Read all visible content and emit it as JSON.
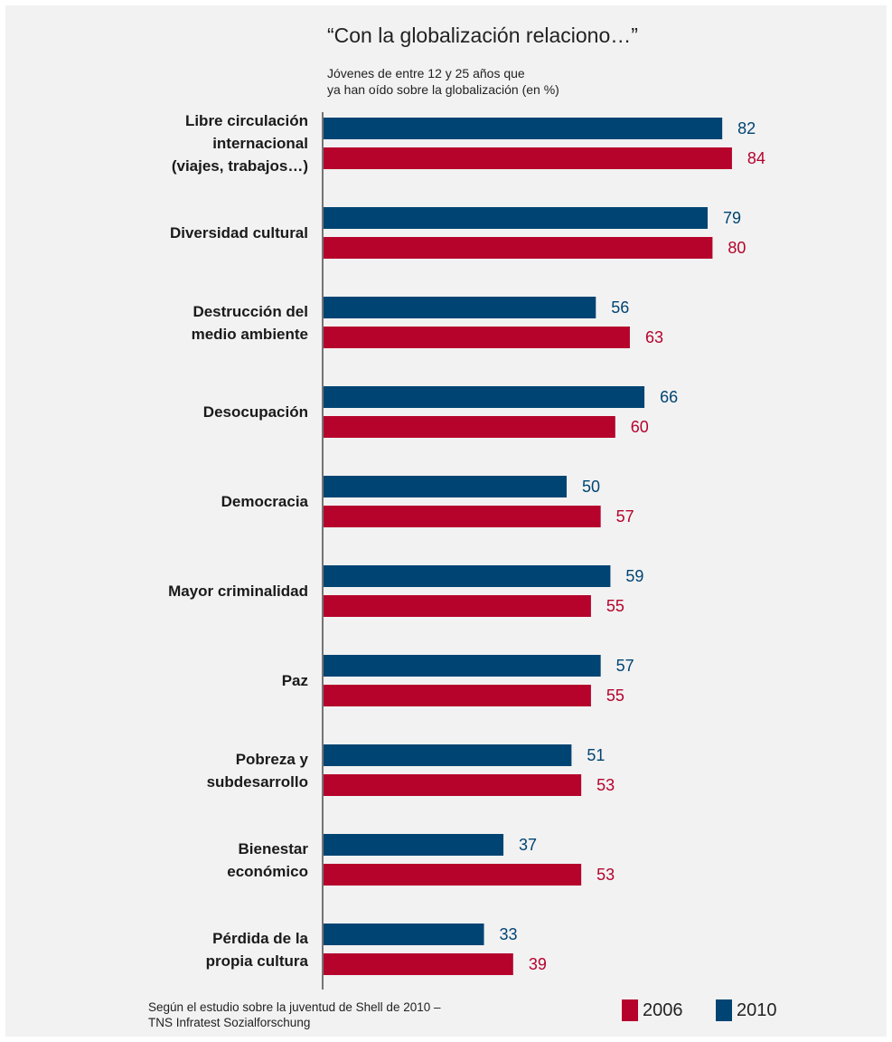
{
  "chart_data": {
    "type": "bar",
    "orientation": "horizontal",
    "title": "“Con la globalización relaciono…”",
    "subtitle_lines": [
      "Jóvenes de entre 12 y 25 años que",
      "ya han oído sobre la globalización (en %)"
    ],
    "categories": [
      [
        "Libre circulación",
        "internacional",
        "(viajes, trabajos…)"
      ],
      [
        "Diversidad cultural"
      ],
      [
        "Destrucción del",
        "medio ambiente"
      ],
      [
        "Desocupación"
      ],
      [
        "Democracia"
      ],
      [
        "Mayor criminalidad"
      ],
      [
        "Paz"
      ],
      [
        "Pobreza y",
        "subdesarrollo"
      ],
      [
        "Bienestar",
        "económico"
      ],
      [
        "Pérdida de la",
        "propia cultura"
      ]
    ],
    "series": [
      {
        "name": "2010",
        "color": "#004473",
        "values": [
          82,
          79,
          56,
          66,
          50,
          59,
          57,
          51,
          37,
          33
        ]
      },
      {
        "name": "2006",
        "color": "#b5032c",
        "values": [
          84,
          80,
          63,
          60,
          57,
          55,
          55,
          53,
          53,
          39
        ]
      }
    ],
    "legend_order": [
      "2006",
      "2010"
    ],
    "legend_position": "bottom-right",
    "xlim": [
      0,
      100
    ],
    "grid": false
  },
  "source_lines": [
    "Según el estudio sobre la juventud de Shell de 2010 –",
    "TNS  Infratest Sozialforschung"
  ]
}
